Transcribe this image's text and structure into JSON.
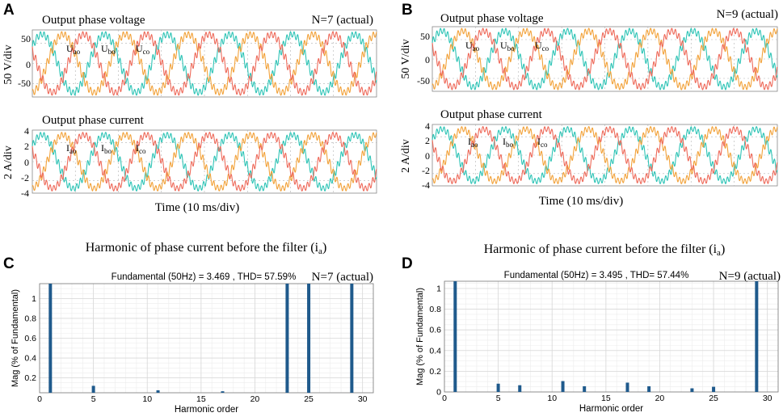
{
  "colors": {
    "phase_a": "#2ec4b6",
    "phase_b": "#f2a23a",
    "phase_c": "#ee6a5a",
    "bar": "#1f5a8c",
    "grid": "#d8d8d8",
    "dash": "#b0b0b0"
  },
  "panels": {
    "A": {
      "letter": "A",
      "n_label": "N=7 (actual)",
      "time_label": "Time (10 ms/div)",
      "voltage": {
        "title": "Output phase voltage",
        "ylabel": "50 V/div",
        "ticks": [
          "50",
          "0",
          "-50"
        ],
        "labels": [
          {
            "base": "U",
            "sub": "ao"
          },
          {
            "base": "U",
            "sub": "bo"
          },
          {
            "base": "U",
            "sub": "co"
          }
        ]
      },
      "current": {
        "title": "Output phase current",
        "ylabel": "2 A/div",
        "ticks": [
          "4",
          "2",
          "0",
          "-2",
          "-4"
        ],
        "labels": [
          {
            "base": "I",
            "sub": "ao"
          },
          {
            "base": "I",
            "sub": "bo"
          },
          {
            "base": "I",
            "sub": "co"
          }
        ]
      }
    },
    "B": {
      "letter": "B",
      "n_label": "N=9 (actual)",
      "time_label": "Time (10 ms/div)",
      "voltage": {
        "title": "Output phase voltage",
        "ylabel": "50 V/div",
        "ticks": [
          "50",
          "0",
          "-50"
        ],
        "labels": [
          {
            "base": "U",
            "sub": "ao"
          },
          {
            "base": "U",
            "sub": "bo"
          },
          {
            "base": "U",
            "sub": "co"
          }
        ]
      },
      "current": {
        "title": "Output phase current",
        "ylabel": "2 A/div",
        "ticks": [
          "4",
          "2",
          "0",
          "-2",
          "-4"
        ],
        "labels": [
          {
            "base": "I",
            "sub": "ao"
          },
          {
            "base": "I",
            "sub": "bo"
          },
          {
            "base": "I",
            "sub": "co"
          }
        ]
      }
    },
    "C": {
      "letter": "C",
      "title_main": "Harmonic of phase current before the filter (i",
      "title_sub": "a",
      "title_end": ")",
      "fundamental_text": "Fundamental (50Hz) = 3.469 , THD= 57.59%",
      "n_label": "N=7 (actual)"
    },
    "D": {
      "letter": "D",
      "title_main": "Harmonic of phase current before the filter (i",
      "title_sub": "a",
      "title_end": ")",
      "fundamental_text": "Fundamental (50Hz) = 3.495 , THD= 57.44%",
      "n_label": "N=9 (actual)"
    }
  },
  "chart_data": [
    {
      "panel": "A-voltage",
      "type": "line",
      "title": "Output phase voltage",
      "ylabel": "50 V/div",
      "xlabel": "Time (10 ms/div)",
      "ylim": [
        -75,
        75
      ],
      "amplitude": 65,
      "cycles": 5.5,
      "series": [
        {
          "name": "Uao",
          "phase_deg": 0
        },
        {
          "name": "Ubo",
          "phase_deg": -120
        },
        {
          "name": "Uco",
          "phase_deg": 120
        }
      ]
    },
    {
      "panel": "A-current",
      "type": "line",
      "title": "Output phase current",
      "ylabel": "2 A/div",
      "xlabel": "Time (10 ms/div)",
      "ylim": [
        -4,
        4
      ],
      "amplitude": 3.4,
      "cycles": 5.5,
      "series": [
        {
          "name": "Iao",
          "phase_deg": 0
        },
        {
          "name": "Ibo",
          "phase_deg": -120
        },
        {
          "name": "Ico",
          "phase_deg": 120
        }
      ]
    },
    {
      "panel": "B-voltage",
      "type": "line",
      "title": "Output phase voltage",
      "ylabel": "50 V/div",
      "xlabel": "Time (10 ms/div)",
      "ylim": [
        -75,
        75
      ],
      "amplitude": 65,
      "cycles": 5.5,
      "series": [
        {
          "name": "Uao",
          "phase_deg": 0
        },
        {
          "name": "Ubo",
          "phase_deg": -120
        },
        {
          "name": "Uco",
          "phase_deg": 120
        }
      ]
    },
    {
      "panel": "B-current",
      "type": "line",
      "title": "Output phase current",
      "ylabel": "2 A/div",
      "xlabel": "Time (10 ms/div)",
      "ylim": [
        -4,
        4
      ],
      "amplitude": 3.4,
      "cycles": 5.5,
      "series": [
        {
          "name": "Iao",
          "phase_deg": 0
        },
        {
          "name": "Ibo",
          "phase_deg": -120
        },
        {
          "name": "Ico",
          "phase_deg": 120
        }
      ]
    },
    {
      "panel": "C",
      "type": "bar",
      "title": "Harmonic of phase current before the filter (ia)",
      "xlabel": "Harmonic order",
      "ylabel": "Mag (% of Fundamental)",
      "xlim": [
        0,
        31
      ],
      "ylim": [
        0.05,
        1.15
      ],
      "xticks": [
        0,
        5,
        10,
        15,
        20,
        25,
        30
      ],
      "yticks": [
        0.2,
        0.4,
        0.6,
        0.8,
        1
      ],
      "x": [
        1,
        5,
        11,
        17,
        23,
        25,
        29
      ],
      "values": [
        1.15,
        0.12,
        0.075,
        0.065,
        1.15,
        1.15,
        1.15
      ]
    },
    {
      "panel": "D",
      "type": "bar",
      "title": "Harmonic of phase current before the filter (ia)",
      "xlabel": "Harmonic order",
      "ylabel": "Mag (% of Fundamental)",
      "xlim": [
        0,
        31
      ],
      "ylim": [
        0,
        1.07
      ],
      "xticks": [
        0,
        5,
        10,
        15,
        20,
        25,
        30
      ],
      "yticks": [
        0,
        0.2,
        0.4,
        0.6,
        0.8,
        1
      ],
      "x": [
        1,
        5,
        7,
        11,
        13,
        17,
        19,
        23,
        25,
        29
      ],
      "values": [
        1.07,
        0.08,
        0.065,
        0.105,
        0.055,
        0.09,
        0.055,
        0.035,
        0.05,
        1.07
      ]
    }
  ]
}
